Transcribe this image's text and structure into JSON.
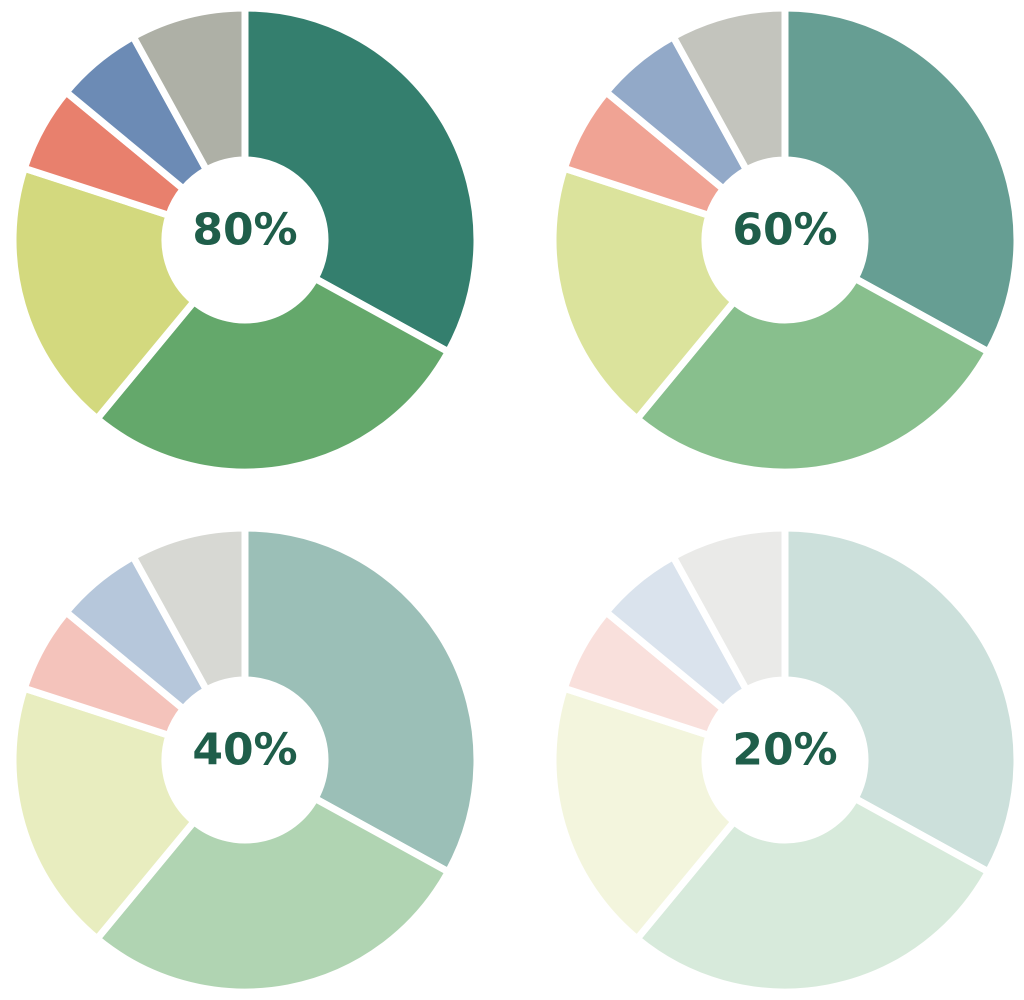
{
  "chart_data": [
    {
      "type": "donut",
      "center_label": "80%",
      "values": [
        33,
        28,
        19,
        6,
        6,
        8
      ],
      "colors": [
        "#347f6e",
        "#64a86b",
        "#d3d97e",
        "#e8806d",
        "#6c8bb5",
        "#aeb0a6"
      ]
    },
    {
      "type": "donut",
      "center_label": "60%",
      "values": [
        33,
        28,
        19,
        6,
        6,
        8
      ],
      "colors": [
        "#669e93",
        "#88bf8d",
        "#dbe39c",
        "#f0a394",
        "#92a9c8",
        "#c3c4bd"
      ]
    },
    {
      "type": "donut",
      "center_label": "40%",
      "values": [
        33,
        28,
        19,
        6,
        6,
        8
      ],
      "colors": [
        "#9bbfb7",
        "#b0d4b2",
        "#e8edbf",
        "#f4c3bb",
        "#b6c7db",
        "#d7d8d3"
      ]
    },
    {
      "type": "donut",
      "center_label": "20%",
      "values": [
        33,
        28,
        19,
        6,
        6,
        8
      ],
      "colors": [
        "#cce0db",
        "#d7eadb",
        "#f3f5dd",
        "#f9e0dc",
        "#dae3ed",
        "#eaeae8"
      ]
    }
  ]
}
